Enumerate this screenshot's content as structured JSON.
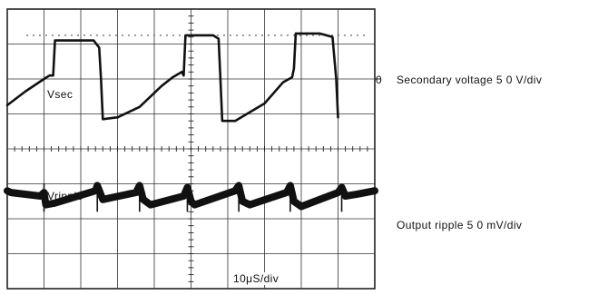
{
  "chart_data": {
    "type": "line",
    "title": "",
    "grid": true,
    "x_divisions": 10,
    "y_divisions": 8,
    "timebase": "10μS/div",
    "zero_marker": "0",
    "series": [
      {
        "name": "Vsec",
        "label": "Secondary voltage",
        "scale": "50 V/div",
        "x_div": [
          0,
          0.5,
          1.0,
          1.15,
          1.25,
          1.3,
          2.35,
          2.5,
          2.55,
          2.6,
          3.0,
          3.6,
          4.2,
          4.5,
          4.75,
          4.8,
          4.85,
          5.6,
          5.75,
          5.8,
          5.85,
          6.2,
          7.0,
          7.5,
          7.75,
          7.8,
          7.85,
          8.5,
          8.85,
          8.95,
          9.0
        ],
        "y_div": [
          -0.75,
          -0.35,
          0.0,
          0.1,
          0.1,
          1.1,
          1.1,
          0.9,
          0.0,
          -1.15,
          -1.1,
          -0.8,
          -0.2,
          0.05,
          0.2,
          0.1,
          1.25,
          1.25,
          1.15,
          0.0,
          -1.2,
          -1.2,
          -0.7,
          -0.1,
          0.05,
          0.3,
          1.3,
          1.3,
          1.2,
          0.0,
          -1.1
        ]
      },
      {
        "name": "Vripple",
        "label": "Output ripple",
        "scale": "50mV/div",
        "x_div": [
          0,
          0.1,
          0.9,
          1.0,
          1.05,
          1.3,
          2.4,
          2.45,
          2.6,
          3.5,
          3.6,
          3.7,
          3.9,
          4.8,
          4.9,
          5.0,
          5.1,
          6.2,
          6.3,
          6.4,
          6.6,
          7.6,
          7.7,
          7.8,
          8.0,
          9.0,
          9.1,
          9.2,
          9.5,
          10.0
        ],
        "y_div": [
          -3.2,
          -3.25,
          -3.35,
          -3.25,
          -3.6,
          -3.55,
          -3.2,
          -3.05,
          -3.45,
          -3.25,
          -3.05,
          -3.45,
          -3.6,
          -3.35,
          -3.1,
          -3.5,
          -3.6,
          -3.2,
          -3.05,
          -3.5,
          -3.6,
          -3.25,
          -3.05,
          -3.5,
          -3.65,
          -3.25,
          -3.1,
          -3.35,
          -3.3,
          -3.2
        ]
      }
    ]
  },
  "labels": {
    "vsec_trace": "Vsec",
    "vripple_trace": "Vripple",
    "zero": "0",
    "secondary": "Secondary voltage  5 0 V/div",
    "ripple": "Output ripple  5 0 mV/div",
    "timebase": "10μS/div"
  }
}
